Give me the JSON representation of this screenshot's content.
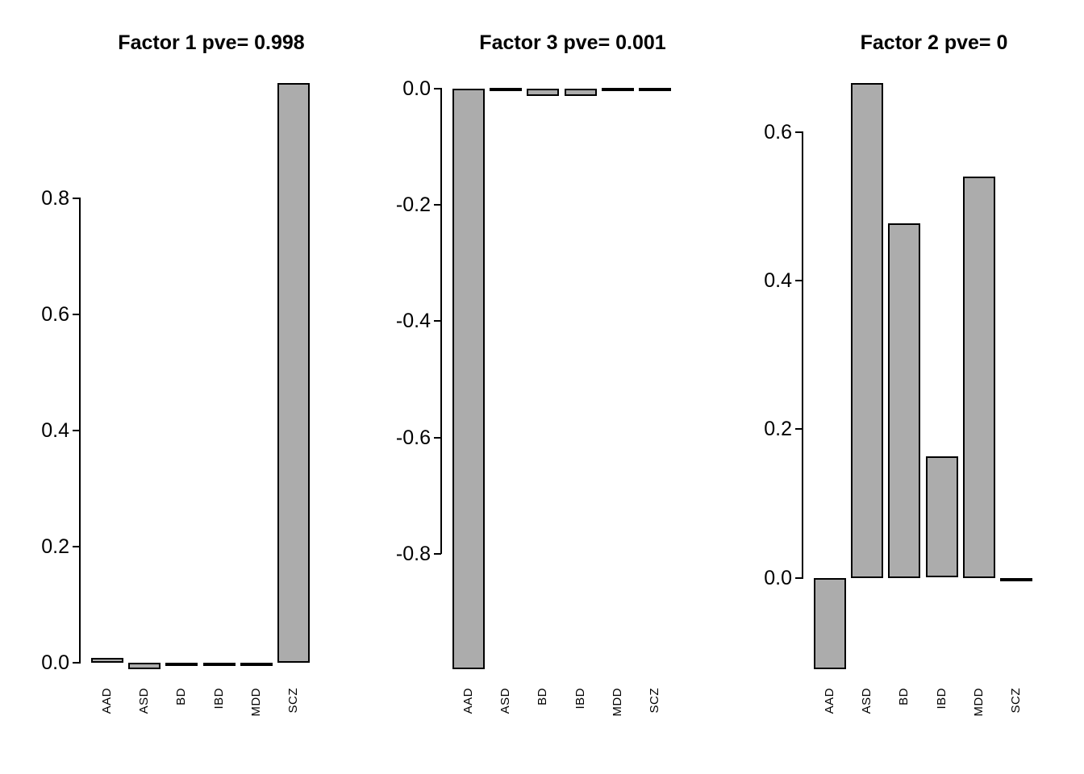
{
  "figure": {
    "background": "#ffffff",
    "bar_fill": "#acacac",
    "bar_border": "#000000",
    "text_color": "#000000"
  },
  "chart_data": [
    {
      "type": "bar",
      "title": "Factor 1 pve= 0.998",
      "factor": "Factor 1",
      "pve": "0.998",
      "categories": [
        "AAD",
        "ASD",
        "BD",
        "IBD",
        "MDD",
        "SCZ"
      ],
      "values": [
        0.008,
        -0.011,
        -0.004,
        -0.001,
        -0.004,
        0.999
      ],
      "ylim": [
        -0.011,
        0.999
      ],
      "ytick_labels": [
        "0.0",
        "0.2",
        "0.4",
        "0.6",
        "0.8"
      ],
      "ytick_values": [
        0,
        0.2,
        0.4,
        0.6,
        0.8
      ],
      "grid": false,
      "legend": "none"
    },
    {
      "type": "bar",
      "title": "Factor 3 pve= 0.001",
      "factor": "Factor 3",
      "pve": "0.001",
      "categories": [
        "AAD",
        "ASD",
        "BD",
        "IBD",
        "MDD",
        "SCZ"
      ],
      "values": [
        -0.999,
        0.001,
        -0.012,
        -0.012,
        0.001,
        0.001
      ],
      "ylim": [
        -0.999,
        0.01
      ],
      "ytick_labels": [
        "0.0",
        "-0.2",
        "-0.4",
        "-0.6",
        "-0.8"
      ],
      "ytick_values": [
        0,
        -0.2,
        -0.4,
        -0.6,
        -0.8
      ],
      "grid": false,
      "legend": "none"
    },
    {
      "type": "bar",
      "title": "Factor 2 pve= 0",
      "factor": "Factor 2",
      "pve": "0",
      "categories": [
        "AAD",
        "ASD",
        "BD",
        "IBD",
        "MDD",
        "SCZ"
      ],
      "values": [
        -0.123,
        0.666,
        0.477,
        0.163,
        0.54,
        -0.001
      ],
      "ylim": [
        -0.123,
        0.666
      ],
      "ytick_labels": [
        "0.0",
        "0.2",
        "0.4",
        "0.6"
      ],
      "ytick_values": [
        0,
        0.2,
        0.4,
        0.6
      ],
      "grid": false,
      "legend": "none"
    }
  ]
}
